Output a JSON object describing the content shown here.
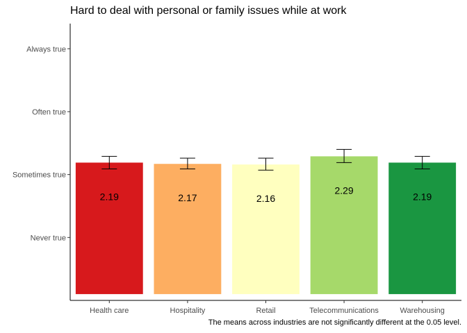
{
  "chart_data": {
    "type": "bar",
    "title": "Hard to deal with personal or family issues while at work",
    "caption": "The means across industries are not significantly different at the 0.05 level.",
    "xlabel": "",
    "ylabel": "",
    "categories": [
      "Health care",
      "Hospitality",
      "Retail",
      "Telecommunications",
      "Warehousing"
    ],
    "values": [
      2.19,
      2.17,
      2.16,
      2.29,
      2.19
    ],
    "value_labels": [
      "2.19",
      "2.17",
      "2.16",
      "2.29",
      "2.19"
    ],
    "error_low": [
      2.09,
      2.09,
      2.07,
      2.19,
      2.09
    ],
    "error_high": [
      2.29,
      2.26,
      2.26,
      2.4,
      2.29
    ],
    "bar_colors": [
      "#d7191c",
      "#fdae61",
      "#ffffbf",
      "#a6d96a",
      "#1a9641"
    ],
    "y_ticks": [
      {
        "value": 1,
        "label": "Never true"
      },
      {
        "value": 2,
        "label": "Sometimes true"
      },
      {
        "value": 3,
        "label": "Often true"
      },
      {
        "value": 4,
        "label": "Always true"
      }
    ],
    "ylim": [
      0.0,
      4.4
    ],
    "grid": false,
    "legend": "none"
  }
}
